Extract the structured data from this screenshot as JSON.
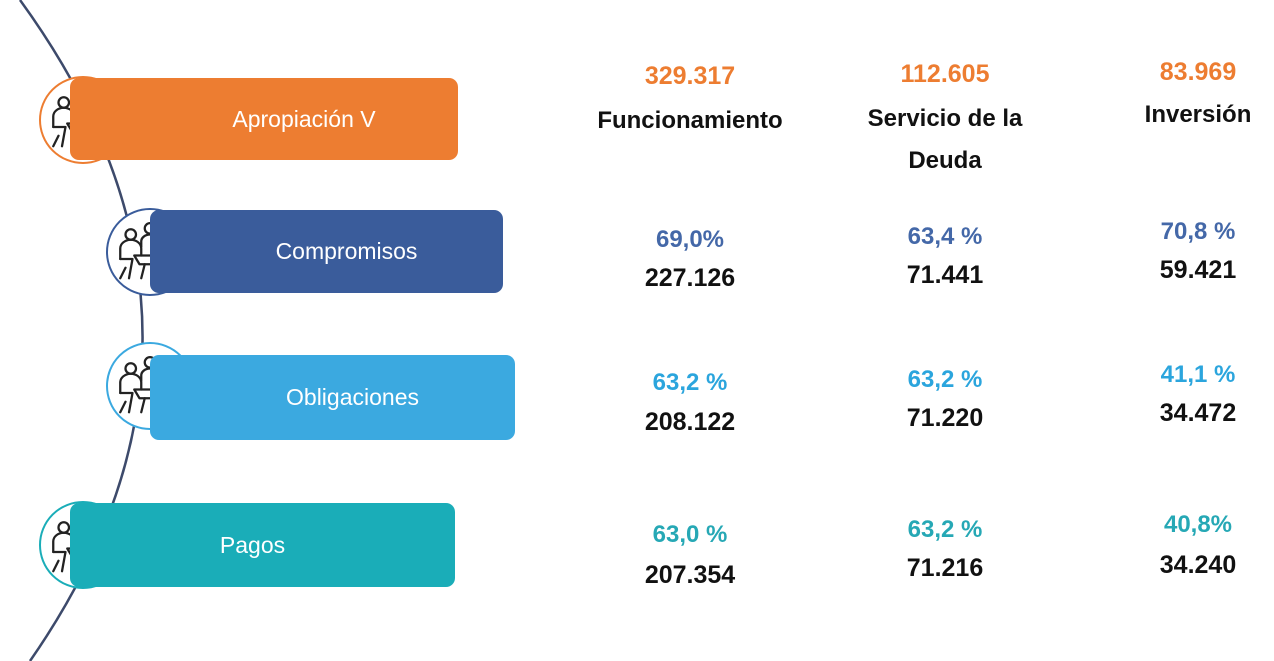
{
  "stages": [
    {
      "label": "Apropiación V"
    },
    {
      "label": "Compromisos"
    },
    {
      "label": "Obligaciones"
    },
    {
      "label": "Pagos"
    }
  ],
  "columns": [
    {
      "name": "Funcionamiento",
      "total": "329.317"
    },
    {
      "name": "Servicio de la Deuda",
      "total": "112.605"
    },
    {
      "name": "Inversión",
      "total": "83.969"
    }
  ],
  "rows": [
    [
      {
        "percent": "69,0%",
        "value": "227.126"
      },
      {
        "percent": "63,4 %",
        "value": "71.441"
      },
      {
        "percent": "70,8 %",
        "value": "59.421"
      }
    ],
    [
      {
        "percent": "63,2 %",
        "value": "208.122"
      },
      {
        "percent": "63,2 %",
        "value": "71.220"
      },
      {
        "percent": "41,1 %",
        "value": "34.472"
      }
    ],
    [
      {
        "percent": "63,0 %",
        "value": "207.354"
      },
      {
        "percent": "63,2 %",
        "value": "71.216"
      },
      {
        "percent": "40,8%",
        "value": "34.240"
      }
    ]
  ]
}
